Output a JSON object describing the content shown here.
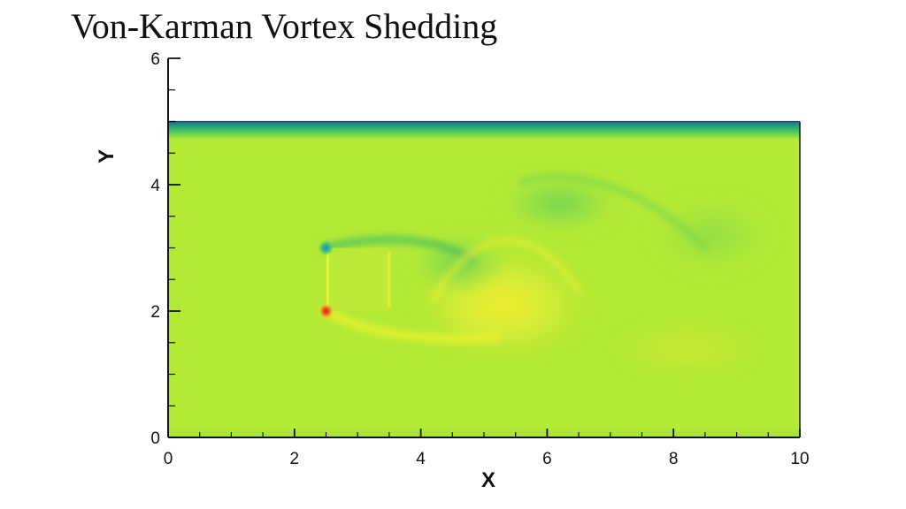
{
  "chart_data": {
    "type": "heatmap",
    "title": "Von-Karman Vortex Shedding",
    "xlabel": "X",
    "ylabel": "Y",
    "xlim": [
      0,
      10
    ],
    "ylim": [
      0,
      6
    ],
    "x_ticks": [
      0,
      2,
      4,
      6,
      8,
      10
    ],
    "y_ticks": [
      0,
      2,
      4,
      6
    ],
    "domain": {
      "x": [
        0,
        10
      ],
      "y": [
        0,
        5
      ]
    },
    "obstacle": {
      "x": [
        2.5,
        3.5
      ],
      "y": [
        2,
        3
      ]
    },
    "colors": {
      "background_field": "#b4ea36",
      "wall_band": "#2fb86a",
      "low": "#1f9e8a",
      "mid_low": "#5fd257",
      "high": "#f2ee2a",
      "peak": "#d8241b"
    },
    "legend": "none",
    "grid": false
  }
}
